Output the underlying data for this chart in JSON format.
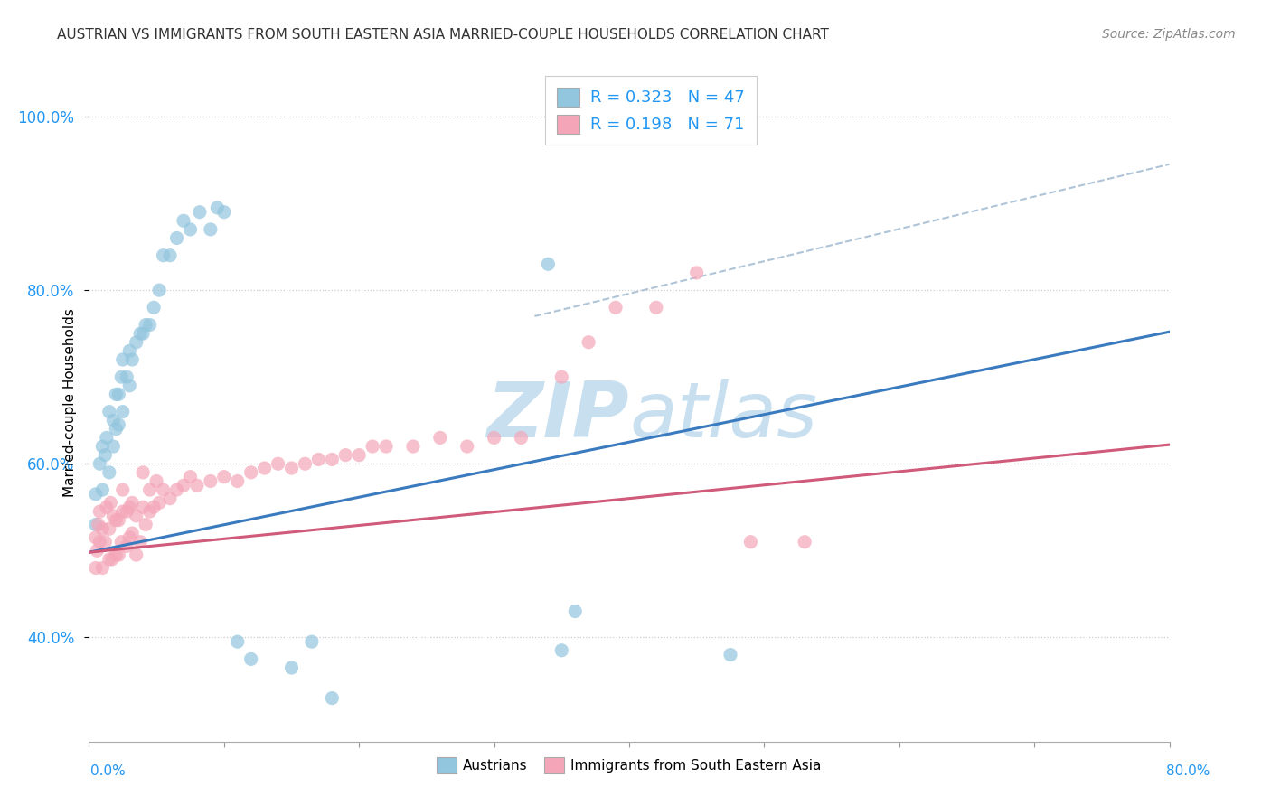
{
  "title": "AUSTRIAN VS IMMIGRANTS FROM SOUTH EASTERN ASIA MARRIED-COUPLE HOUSEHOLDS CORRELATION CHART",
  "source": "Source: ZipAtlas.com",
  "ylabel": "Married-couple Households",
  "legend1_label": "Austrians",
  "legend2_label": "Immigrants from South Eastern Asia",
  "R1": 0.323,
  "N1": 47,
  "R2": 0.198,
  "N2": 71,
  "blue_color": "#92c5de",
  "pink_color": "#f4a6b8",
  "blue_line_color": "#3a7abf",
  "pink_line_color": "#d05a7a",
  "dashed_line_color": "#b0c4d8",
  "watermark_color": "#c8dff0",
  "xlim": [
    0.0,
    0.8
  ],
  "ylim": [
    0.28,
    1.06
  ],
  "blue_line_x": [
    0.0,
    0.8
  ],
  "blue_line_y": [
    0.498,
    0.752
  ],
  "pink_line_x": [
    0.0,
    0.8
  ],
  "pink_line_y": [
    0.498,
    0.622
  ],
  "dash_line_x": [
    0.33,
    0.8
  ],
  "dash_line_y": [
    0.77,
    0.945
  ],
  "blue_dots_x": [
    0.005,
    0.005,
    0.008,
    0.01,
    0.01,
    0.012,
    0.013,
    0.015,
    0.015,
    0.018,
    0.018,
    0.02,
    0.02,
    0.022,
    0.022,
    0.024,
    0.025,
    0.025,
    0.028,
    0.03,
    0.03,
    0.032,
    0.035,
    0.038,
    0.04,
    0.042,
    0.045,
    0.048,
    0.052,
    0.055,
    0.06,
    0.065,
    0.07,
    0.075,
    0.082,
    0.09,
    0.095,
    0.1,
    0.11,
    0.12,
    0.15,
    0.165,
    0.18,
    0.34,
    0.35,
    0.36,
    0.475
  ],
  "blue_dots_y": [
    0.53,
    0.565,
    0.6,
    0.57,
    0.62,
    0.61,
    0.63,
    0.59,
    0.66,
    0.62,
    0.65,
    0.64,
    0.68,
    0.645,
    0.68,
    0.7,
    0.66,
    0.72,
    0.7,
    0.69,
    0.73,
    0.72,
    0.74,
    0.75,
    0.75,
    0.76,
    0.76,
    0.78,
    0.8,
    0.84,
    0.84,
    0.86,
    0.88,
    0.87,
    0.89,
    0.87,
    0.895,
    0.89,
    0.395,
    0.375,
    0.365,
    0.395,
    0.33,
    0.83,
    0.385,
    0.43,
    0.38
  ],
  "pink_dots_x": [
    0.005,
    0.005,
    0.006,
    0.007,
    0.008,
    0.008,
    0.01,
    0.01,
    0.012,
    0.013,
    0.015,
    0.015,
    0.016,
    0.017,
    0.018,
    0.02,
    0.02,
    0.022,
    0.022,
    0.024,
    0.025,
    0.025,
    0.028,
    0.028,
    0.03,
    0.03,
    0.032,
    0.032,
    0.035,
    0.035,
    0.038,
    0.04,
    0.04,
    0.042,
    0.045,
    0.045,
    0.048,
    0.05,
    0.052,
    0.055,
    0.06,
    0.065,
    0.07,
    0.075,
    0.08,
    0.09,
    0.1,
    0.11,
    0.12,
    0.13,
    0.14,
    0.15,
    0.16,
    0.17,
    0.18,
    0.19,
    0.2,
    0.21,
    0.22,
    0.24,
    0.26,
    0.28,
    0.3,
    0.32,
    0.35,
    0.37,
    0.39,
    0.42,
    0.45,
    0.49,
    0.53
  ],
  "pink_dots_y": [
    0.48,
    0.515,
    0.5,
    0.53,
    0.51,
    0.545,
    0.48,
    0.525,
    0.51,
    0.55,
    0.49,
    0.525,
    0.555,
    0.49,
    0.54,
    0.495,
    0.535,
    0.495,
    0.535,
    0.51,
    0.545,
    0.57,
    0.505,
    0.545,
    0.515,
    0.55,
    0.52,
    0.555,
    0.495,
    0.54,
    0.51,
    0.55,
    0.59,
    0.53,
    0.545,
    0.57,
    0.55,
    0.58,
    0.555,
    0.57,
    0.56,
    0.57,
    0.575,
    0.585,
    0.575,
    0.58,
    0.585,
    0.58,
    0.59,
    0.595,
    0.6,
    0.595,
    0.6,
    0.605,
    0.605,
    0.61,
    0.61,
    0.62,
    0.62,
    0.62,
    0.63,
    0.62,
    0.63,
    0.63,
    0.7,
    0.74,
    0.78,
    0.78,
    0.82,
    0.51,
    0.51
  ]
}
